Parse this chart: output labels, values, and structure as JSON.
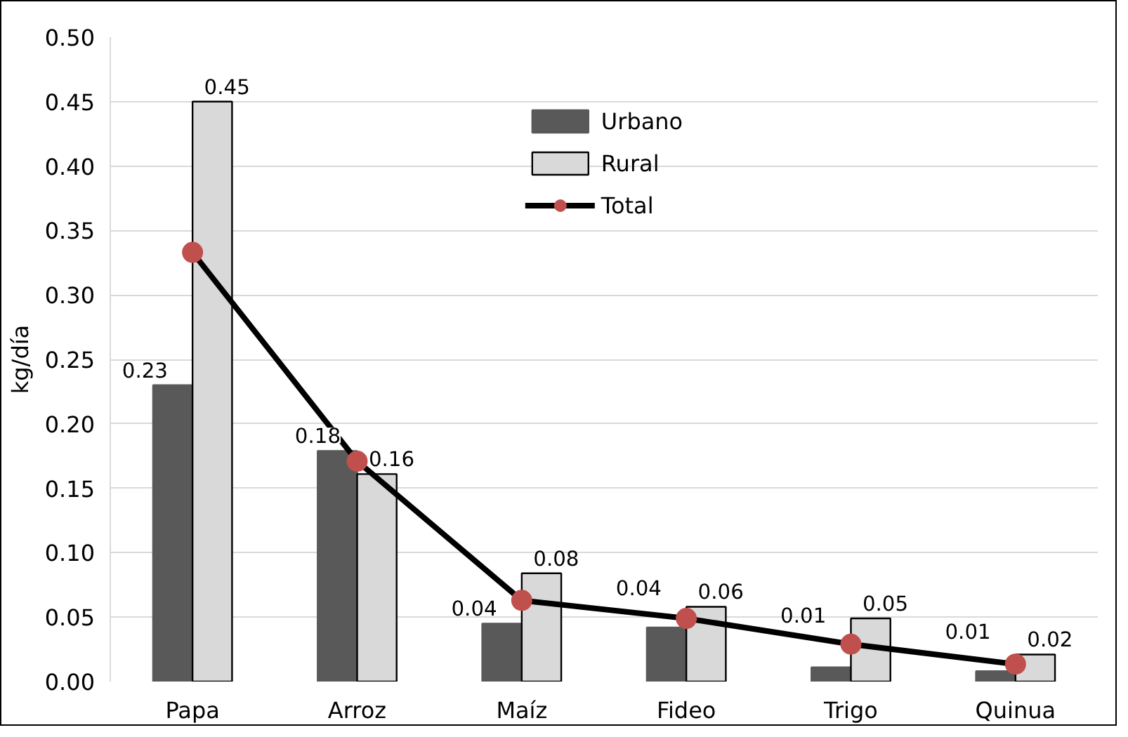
{
  "chart_data": {
    "type": "bar",
    "ylabel": "kg/día",
    "categories": [
      "Papa",
      "Arroz",
      "Maíz",
      "Fideo",
      "Trigo",
      "Quinua"
    ],
    "series": [
      {
        "name": "Urbano",
        "color": "#595959",
        "values": [
          0.23,
          0.179,
          0.045,
          0.042,
          0.011,
          0.008
        ],
        "value_labels": [
          "0.23",
          "0.18",
          "0.04",
          "0.04",
          "0.01",
          "0.01"
        ]
      },
      {
        "name": "Rural",
        "color": "#d9d9d9",
        "values": [
          0.45,
          0.161,
          0.084,
          0.058,
          0.049,
          0.021
        ],
        "value_labels": [
          "0.45",
          "0.16",
          "0.08",
          "0.06",
          "0.05",
          "0.02"
        ]
      },
      {
        "name": "Total",
        "type": "line",
        "color": "#000000",
        "colors": [
          "#c0504d",
          "#c0504d",
          "#c0504d",
          "#c0504d",
          "#c0504d",
          "#c0504d"
        ],
        "values": [
          0.333,
          0.171,
          0.063,
          0.049,
          0.029,
          0.0135
        ]
      }
    ],
    "marker": "circle",
    "ylim": [
      0,
      0.5
    ],
    "yticks": [
      "0.00",
      "0.05",
      "0.10",
      "0.15",
      "0.20",
      "0.25",
      "0.30",
      "0.35",
      "0.40",
      "0.45",
      "0.50"
    ],
    "grid": "y",
    "legend": "top"
  }
}
